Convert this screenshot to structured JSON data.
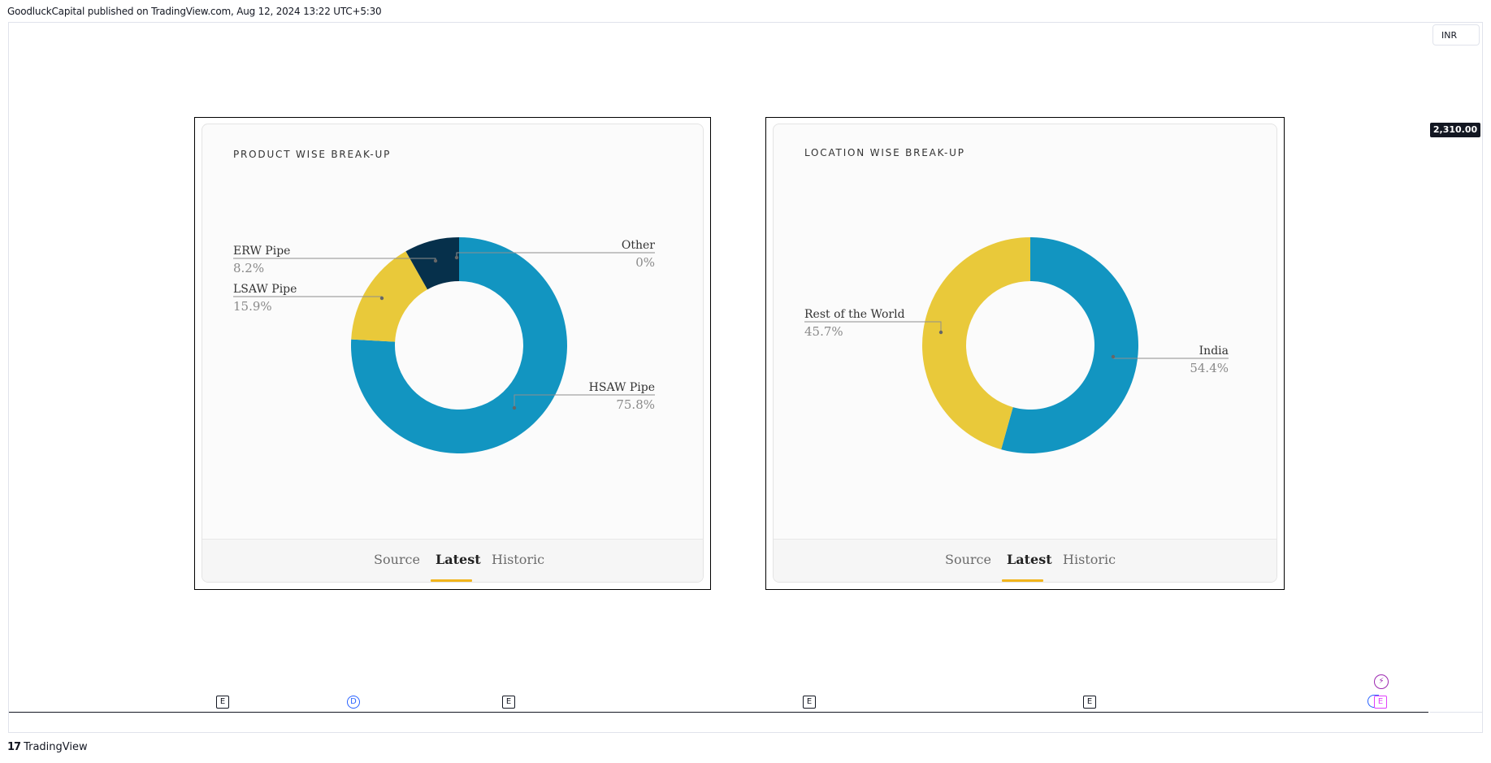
{
  "header": {
    "published_line": "GoodluckCapital published on TradingView.com, Aug 12, 2024 13:22 UTC+5:30"
  },
  "chart_toolbar": {
    "currency": "INR",
    "price_label": "2,310.00"
  },
  "event_markers": [
    {
      "label": "E",
      "kind": "earnings"
    },
    {
      "label": "D",
      "kind": "dividend"
    },
    {
      "label": "E",
      "kind": "earnings"
    },
    {
      "label": "E",
      "kind": "earnings"
    },
    {
      "label": "E",
      "kind": "earnings"
    },
    {
      "label": "E",
      "kind": "earnings-upcoming"
    },
    {
      "label": "⚡",
      "kind": "flash-event"
    }
  ],
  "footer": {
    "brand": "TradingView",
    "brand_mark": "17"
  },
  "tabs": [
    "Source",
    "Latest",
    "Historic"
  ],
  "active_tab": "Latest",
  "colors": {
    "blue": "#1295c1",
    "yellow": "#e9c93a",
    "navy": "#06304b",
    "tab_accent": "#f2b51c"
  },
  "chart_data": [
    {
      "type": "pie",
      "title": "PRODUCT WISE BREAK-UP",
      "slices": [
        {
          "label": "HSAW Pipe",
          "value": 75.8,
          "display": "75.8%",
          "color": "#1295c1"
        },
        {
          "label": "LSAW Pipe",
          "value": 15.9,
          "display": "15.9%",
          "color": "#e9c93a"
        },
        {
          "label": "ERW Pipe",
          "value": 8.2,
          "display": "8.2%",
          "color": "#06304b"
        },
        {
          "label": "Other",
          "value": 0,
          "display": "0%",
          "color": "#1295c1"
        }
      ]
    },
    {
      "type": "pie",
      "title": "LOCATION WISE BREAK-UP",
      "slices": [
        {
          "label": "India",
          "value": 54.4,
          "display": "54.4%",
          "color": "#1295c1"
        },
        {
          "label": "Rest of the World",
          "value": 45.7,
          "display": "45.7%",
          "color": "#e9c93a"
        }
      ]
    }
  ]
}
